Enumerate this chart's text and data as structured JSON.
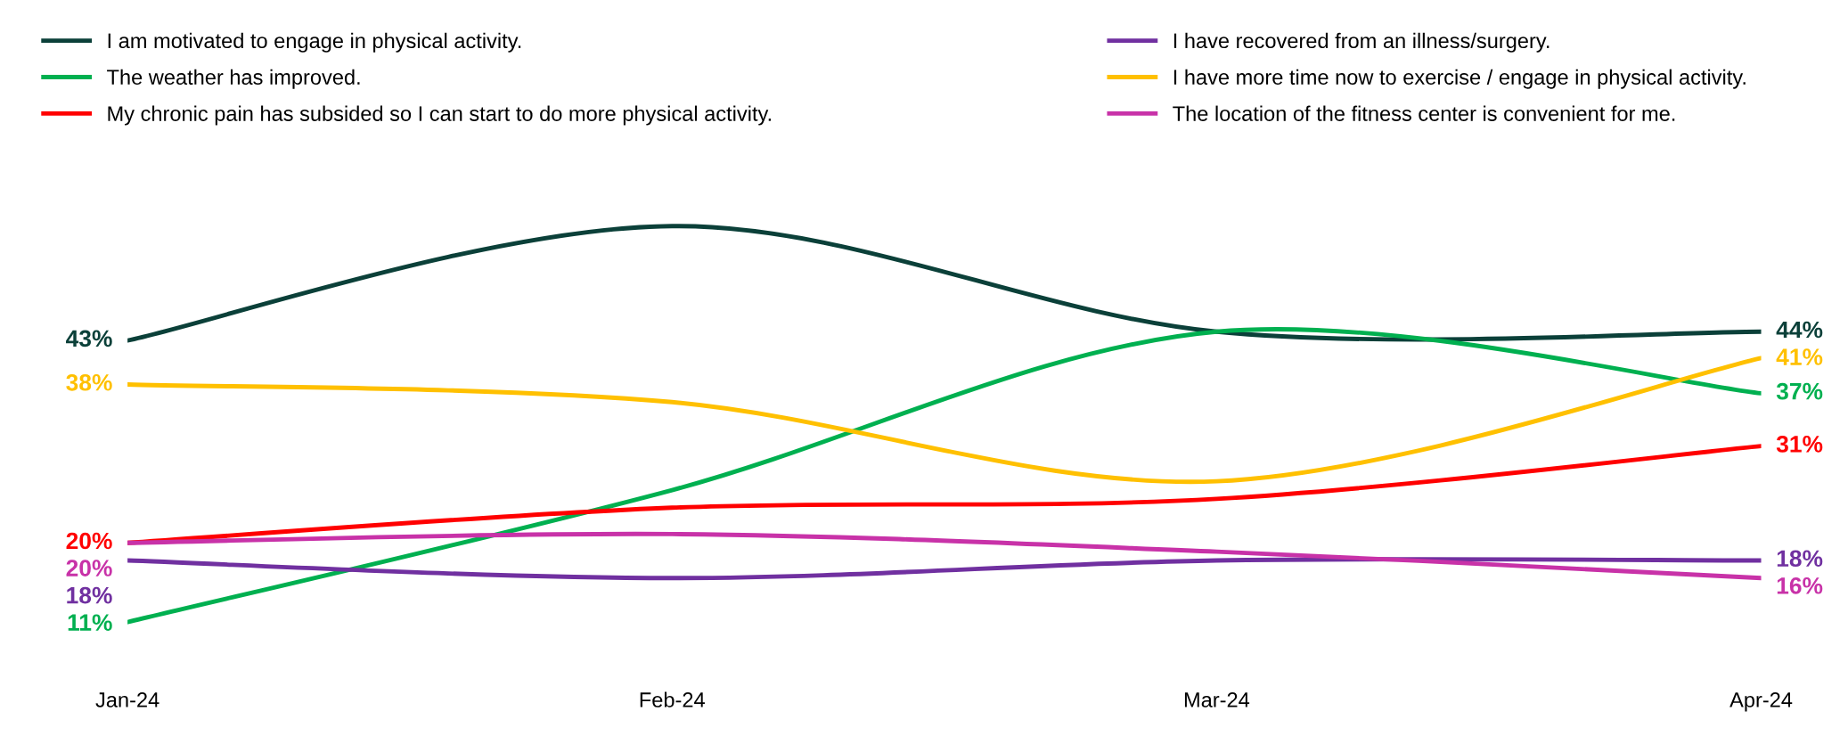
{
  "chart_data": {
    "type": "line",
    "categories": [
      "Jan-24",
      "Feb-24",
      "Mar-24",
      "Apr-24"
    ],
    "series": [
      {
        "name": "I am motivated to engage in physical activity.",
        "color": "#0b4039",
        "values": [
          43,
          56,
          44,
          44
        ],
        "value_labels": [
          "43%",
          null,
          null,
          "44%"
        ]
      },
      {
        "name": "The weather has improved.",
        "color": "#00b050",
        "values": [
          11,
          26,
          44,
          37
        ],
        "value_labels": [
          "11%",
          null,
          null,
          "37%"
        ]
      },
      {
        "name": "My chronic pain has subsided so I can start to do more physical activity.",
        "color": "#ff0000",
        "values": [
          20,
          24,
          25,
          31
        ],
        "value_labels": [
          "20%",
          null,
          null,
          "31%"
        ]
      },
      {
        "name": "I have recovered from an illness/surgery.",
        "color": "#7030a0",
        "values": [
          18,
          16,
          18,
          18
        ],
        "value_labels": [
          "18%",
          null,
          null,
          "18%"
        ]
      },
      {
        "name": "I have more time now to exercise / engage in physical activity.",
        "color": "#ffc000",
        "values": [
          38,
          36,
          27,
          41
        ],
        "value_labels": [
          "38%",
          null,
          null,
          "41%"
        ]
      },
      {
        "name": "The location of the fitness center is convenient for me.",
        "color": "#c832a8",
        "values": [
          20,
          21,
          19,
          16
        ],
        "value_labels": [
          "20%",
          null,
          null,
          "16%"
        ]
      }
    ],
    "legend": "top",
    "grid": false,
    "tick_labels": "x",
    "line_style": "solid",
    "marker": "none"
  }
}
